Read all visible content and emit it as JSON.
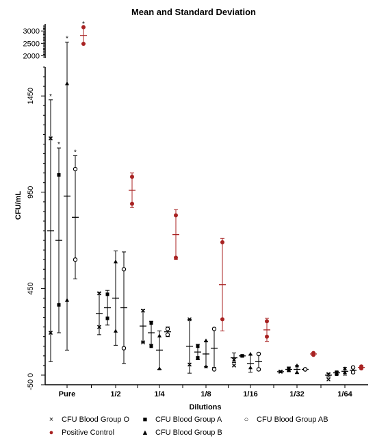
{
  "chart_data": {
    "type": "scatter",
    "title": "Mean and Standard Deviation",
    "xlabel": "Dilutions",
    "ylabel": "CFU/mL",
    "categories": [
      "Pure",
      "1/2",
      "1/4",
      "1/8",
      "1/16",
      "1/32",
      "1/64"
    ],
    "y_ticks_lower": [
      "-50",
      "0",
      "450",
      "950",
      "1450"
    ],
    "y_ticks_upper": [
      "2000",
      "2500",
      "3000"
    ],
    "y_lower_range": [
      -50,
      1600
    ],
    "y_upper_range": [
      1900,
      3200
    ],
    "grid": false,
    "legend_position": "bottom",
    "series": [
      {
        "name": "CFU Blood Group O",
        "marker": "x",
        "color": "#000000",
        "points": [
          [
            220,
            1230
          ],
          [
            250,
            425
          ],
          [
            170,
            335
          ],
          [
            55,
            290
          ],
          [
            50,
            80
          ],
          [
            18,
            18
          ],
          [
            -22,
            5
          ]
        ],
        "mean": [
          750,
          320,
          255,
          150,
          90,
          18,
          0
        ],
        "sd": [
          680,
          110,
          85,
          140,
          25,
          5,
          10
        ],
        "significance": [
          true,
          false,
          false,
          false,
          false,
          false,
          false
        ]
      },
      {
        "name": "CFU Blood Group A",
        "marker": "square",
        "color": "#000000",
        "points": [
          [
            365,
            1040
          ],
          [
            295,
            420
          ],
          [
            150,
            270
          ],
          [
            90,
            150
          ],
          [
            100,
            100
          ],
          [
            25,
            35
          ],
          [
            5,
            15
          ]
        ],
        "mean": [
          700,
          350,
          220,
          120,
          100,
          30,
          12
        ],
        "sd": [
          480,
          90,
          60,
          40,
          5,
          12,
          8
        ],
        "significance": [
          true,
          false,
          false,
          false,
          false,
          false,
          false
        ]
      },
      {
        "name": "CFU Blood Group B",
        "marker": "triangle",
        "color": "#000000",
        "points": [
          [
            390,
            1515
          ],
          [
            230,
            590
          ],
          [
            35,
            205
          ],
          [
            45,
            180
          ],
          [
            40,
            110
          ],
          [
            15,
            50
          ],
          [
            15,
            35
          ]
        ],
        "mean": [
          930,
          400,
          130,
          110,
          60,
          30,
          20
        ],
        "sd": [
          800,
          245,
          100,
          65,
          45,
          20,
          20
        ],
        "significance": [
          true,
          false,
          false,
          false,
          false,
          false,
          false
        ]
      },
      {
        "name": "CFU Blood Group AB",
        "marker": "circle",
        "color": "#000000",
        "points": [
          [
            600,
            1070
          ],
          [
            140,
            550
          ],
          [
            210,
            240
          ],
          [
            30,
            240
          ],
          [
            30,
            110
          ],
          [
            30,
            30
          ],
          [
            15,
            40
          ]
        ],
        "mean": [
          820,
          350,
          225,
          140,
          70,
          30,
          25
        ],
        "sd": [
          320,
          290,
          25,
          100,
          45,
          2,
          15
        ],
        "significance": [
          true,
          false,
          false,
          false,
          false,
          false,
          false
        ]
      },
      {
        "name": "Positive Control",
        "marker": "circle-filled",
        "color": "#a82222",
        "points": [
          [
            3150,
            2480
          ],
          [
            1030,
            890
          ],
          [
            830,
            610
          ],
          [
            690,
            290
          ],
          [
            280,
            200
          ],
          [
            105,
            115
          ],
          [
            35,
            45
          ]
        ],
        "mean": [
          2820,
          960,
          730,
          470,
          235,
          110,
          40
        ],
        "sd": [
          330,
          90,
          130,
          240,
          60,
          8,
          8
        ],
        "significance": [
          true,
          false,
          false,
          false,
          false,
          false,
          false
        ]
      }
    ]
  }
}
